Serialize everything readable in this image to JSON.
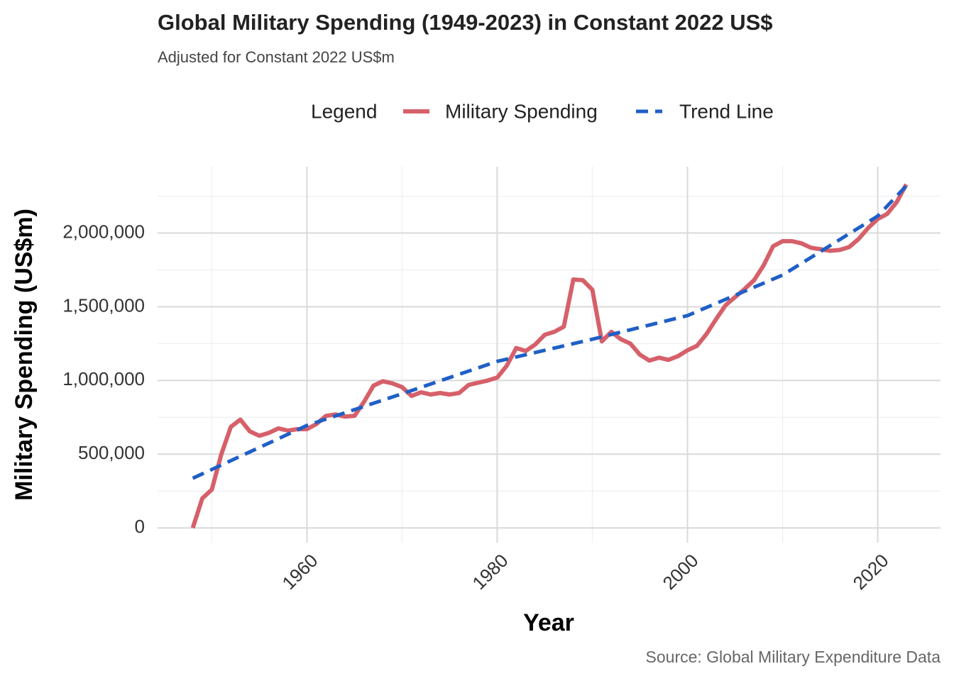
{
  "chart_data": {
    "type": "line",
    "title": "Global Military Spending (1949-2023) in Constant 2022 US$",
    "subtitle": "Adjusted for Constant 2022 US$m",
    "x_label": "Year",
    "y_label": "Military Spending (US$m)",
    "caption": "Source: Global Military Expenditure Data",
    "legend_title": "Legend",
    "legend_position": "top",
    "grid": true,
    "xlim": [
      1944.3,
      2026.6
    ],
    "ylim": [
      -100000,
      2450000
    ],
    "xticks": [
      1960,
      1980,
      2000,
      2020
    ],
    "x_minor_ticks": [
      1950,
      1970,
      1990,
      2010
    ],
    "yticks": [
      {
        "value": 0,
        "label": "0"
      },
      {
        "value": 500000,
        "label": "500,000"
      },
      {
        "value": 1000000,
        "label": "1,000,000"
      },
      {
        "value": 1500000,
        "label": "1,500,000"
      },
      {
        "value": 2000000,
        "label": "2,000,000"
      }
    ],
    "y_minor_ticks": [
      250000,
      750000,
      1250000,
      1750000,
      2250000
    ],
    "x": [
      1948,
      1949,
      1950,
      1951,
      1952,
      1953,
      1954,
      1955,
      1956,
      1957,
      1958,
      1959,
      1960,
      1961,
      1962,
      1963,
      1964,
      1965,
      1966,
      1967,
      1968,
      1969,
      1970,
      1971,
      1972,
      1973,
      1974,
      1975,
      1976,
      1977,
      1978,
      1979,
      1980,
      1981,
      1982,
      1983,
      1984,
      1985,
      1986,
      1987,
      1988,
      1989,
      1990,
      1991,
      1992,
      1993,
      1994,
      1995,
      1996,
      1997,
      1998,
      1999,
      2000,
      2001,
      2002,
      2003,
      2004,
      2005,
      2006,
      2007,
      2008,
      2009,
      2010,
      2011,
      2012,
      2013,
      2014,
      2015,
      2016,
      2017,
      2018,
      2019,
      2020,
      2021,
      2022,
      2023
    ],
    "series": [
      {
        "name": "Military Spending",
        "color": "#d6606a",
        "dash": "solid",
        "values": [
          0,
          200000,
          260000,
          500000,
          685000,
          735000,
          655000,
          625000,
          645000,
          675000,
          660000,
          670000,
          670000,
          705000,
          760000,
          770000,
          755000,
          760000,
          855000,
          965000,
          995000,
          980000,
          955000,
          895000,
          920000,
          905000,
          915000,
          905000,
          915000,
          970000,
          985000,
          1000000,
          1020000,
          1100000,
          1220000,
          1200000,
          1245000,
          1310000,
          1330000,
          1365000,
          1685000,
          1680000,
          1615000,
          1265000,
          1330000,
          1280000,
          1250000,
          1175000,
          1135000,
          1155000,
          1140000,
          1165000,
          1205000,
          1235000,
          1315000,
          1415000,
          1510000,
          1565000,
          1620000,
          1680000,
          1780000,
          1910000,
          1945000,
          1945000,
          1930000,
          1900000,
          1890000,
          1880000,
          1885000,
          1905000,
          1960000,
          2035000,
          2095000,
          2130000,
          2210000,
          2330000
        ]
      },
      {
        "name": "Trend Line",
        "color": "#1f5fc7",
        "dash": "dashed",
        "x": [
          1948,
          1960,
          1970,
          1980,
          1990,
          2000,
          2010,
          2020,
          2023
        ],
        "values": [
          337000,
          695000,
          910000,
          1130000,
          1280000,
          1440000,
          1715000,
          2115000,
          2320000
        ]
      }
    ]
  }
}
